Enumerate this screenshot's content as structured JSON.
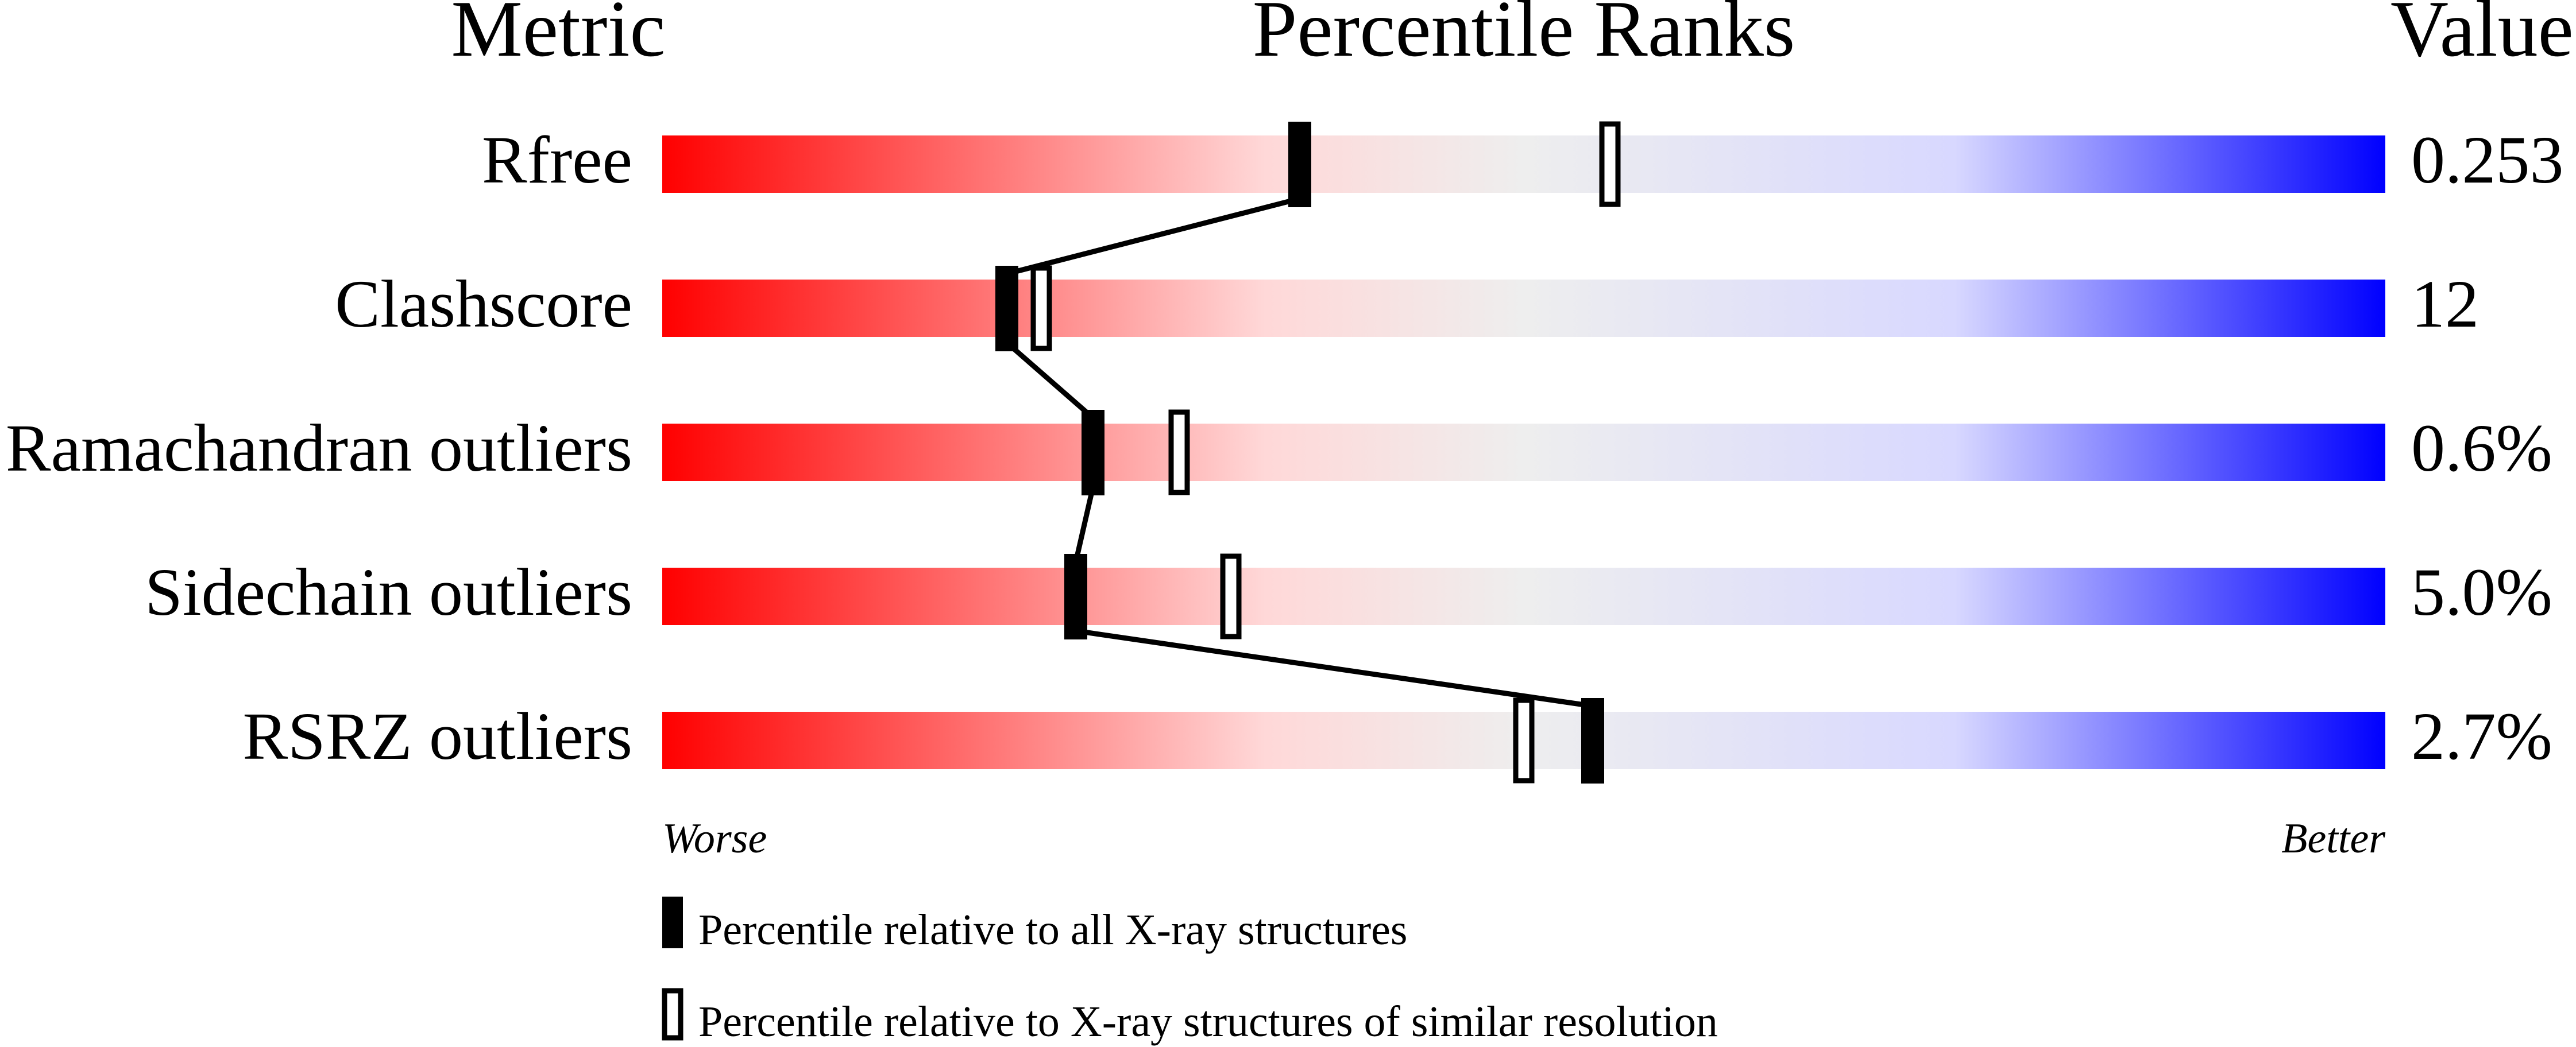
{
  "chart_data": {
    "type": "percentile-slider",
    "headers": {
      "metric": "Metric",
      "ranks": "Percentile Ranks",
      "value": "Value"
    },
    "xlim": [
      0,
      100
    ],
    "axis_labels": {
      "left": "Worse",
      "right": "Better"
    },
    "gradient_colors": [
      "#ff0000",
      "#ffe0e0",
      "#eeeeee",
      "#d8d8ff",
      "#0000ff"
    ],
    "metrics": [
      {
        "name": "Rfree",
        "value": "0.253",
        "percentile_all": 37,
        "percentile_similar": 55
      },
      {
        "name": "Clashscore",
        "value": "12",
        "percentile_all": 20,
        "percentile_similar": 22
      },
      {
        "name": "Ramachandran outliers",
        "value": "0.6%",
        "percentile_all": 25,
        "percentile_similar": 30
      },
      {
        "name": "Sidechain outliers",
        "value": "5.0%",
        "percentile_all": 24,
        "percentile_similar": 33
      },
      {
        "name": "RSRZ outliers",
        "value": "2.7%",
        "percentile_all": 54,
        "percentile_similar": 50
      }
    ],
    "legend": {
      "all": "Percentile relative to all X-ray structures",
      "similar": "Percentile relative to X-ray structures of similar resolution"
    }
  }
}
